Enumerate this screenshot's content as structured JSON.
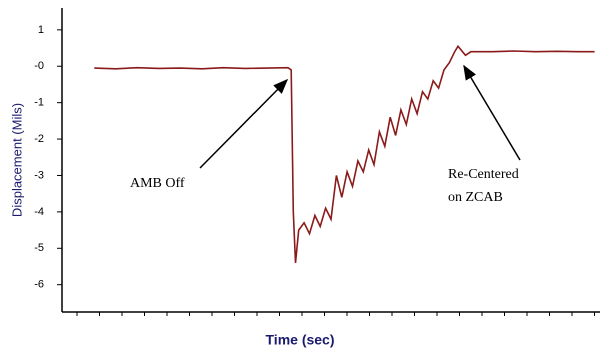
{
  "chart_data": {
    "type": "line",
    "y_label": "Displacement (Mils)",
    "x_label": "Time (sec)",
    "annotations": [
      "AMB Off",
      "Re-Centered",
      "on ZCAB"
    ],
    "color": "#8b1a1a",
    "x": [
      6,
      10,
      14,
      18,
      22,
      26,
      30,
      34,
      38,
      42,
      42.6,
      43,
      43.4,
      44,
      45,
      46,
      47,
      48,
      49,
      50,
      51,
      52,
      53,
      54,
      55,
      56,
      57,
      58,
      59,
      60,
      61,
      62,
      63,
      64,
      65,
      66,
      67,
      68,
      69,
      70,
      71,
      72,
      73,
      73.6,
      75,
      76,
      80,
      84,
      88,
      92,
      96,
      99
    ],
    "values": [
      -0.05,
      -0.07,
      -0.04,
      -0.06,
      -0.05,
      -0.07,
      -0.04,
      -0.06,
      -0.05,
      -0.04,
      -0.1,
      -4.0,
      -5.4,
      -4.5,
      -4.3,
      -4.6,
      -4.1,
      -4.4,
      -3.9,
      -4.2,
      -3.0,
      -3.6,
      -2.9,
      -3.3,
      -2.6,
      -2.9,
      -2.3,
      -2.7,
      -1.8,
      -2.2,
      -1.4,
      -1.9,
      -1.2,
      -1.6,
      -0.9,
      -1.3,
      -0.7,
      -0.9,
      -0.4,
      -0.6,
      -0.1,
      0.1,
      0.4,
      0.55,
      0.3,
      0.4,
      0.4,
      0.42,
      0.4,
      0.41,
      0.4,
      0.4
    ],
    "xlim": [
      0,
      100
    ],
    "ylim": [
      -6.75,
      1.6
    ],
    "yticks": [
      1,
      {
        "value": 0,
        "label": "-0"
      },
      -1,
      -2,
      -3,
      -4,
      -5,
      -6
    ]
  }
}
